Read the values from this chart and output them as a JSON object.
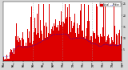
{
  "bg_color": "#d8d8d8",
  "plot_bg_color": "#ffffff",
  "bar_color": "#dd0000",
  "line_color": "#0000ee",
  "ylim": [
    0,
    26
  ],
  "yticks": [
    5,
    10,
    15,
    20,
    25
  ],
  "n_points": 1440,
  "grid_color": "#999999",
  "grid_hours": [
    6,
    12,
    18
  ],
  "legend_actual_color": "#dd0000",
  "legend_median_color": "#0000ee"
}
